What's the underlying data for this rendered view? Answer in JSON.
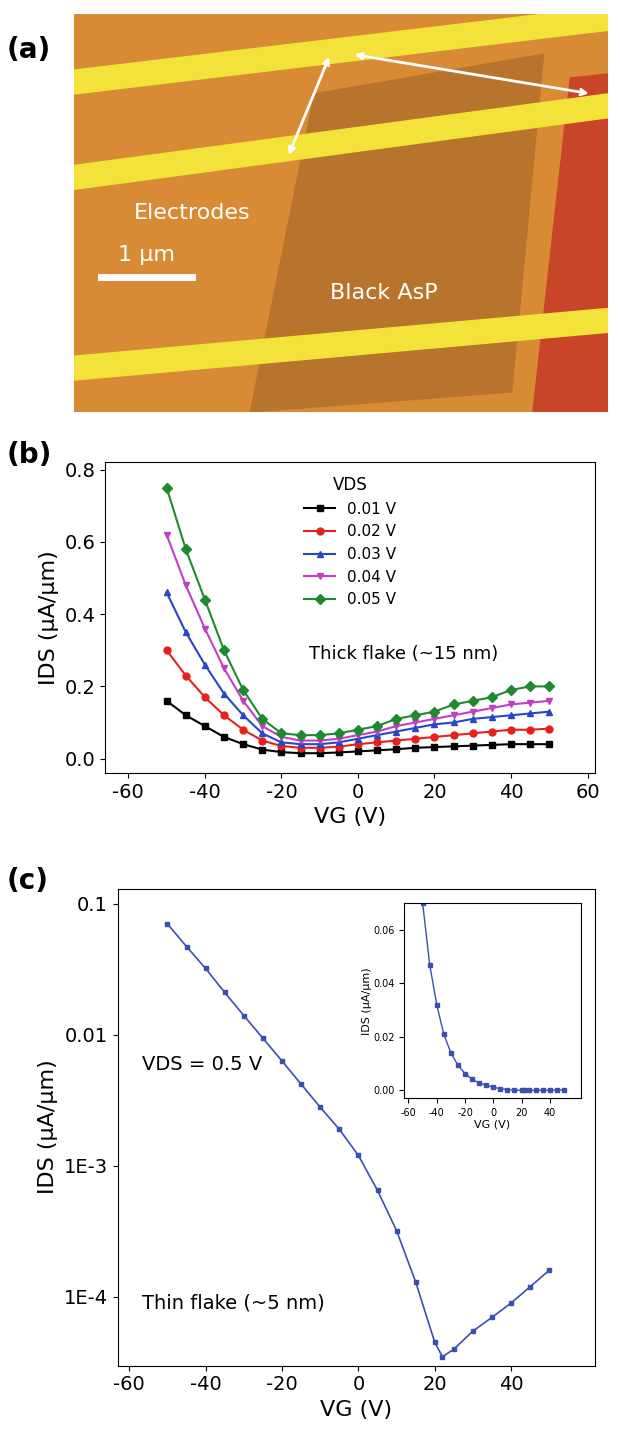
{
  "chart_data": [
    {
      "type": "image",
      "panel_label": "(a)",
      "annotations": [
        "Electrodes",
        "Black AsP",
        "1 μm"
      ]
    },
    {
      "type": "line",
      "panel_label": "(b)",
      "x_label": "VG (V)",
      "y_label": "IDS (μA/μm)",
      "legend_title": "VDS",
      "legend": "upper center",
      "annotations": [
        "Thick flake (~15 nm)"
      ],
      "x": [
        -50,
        -45,
        -40,
        -35,
        -30,
        -25,
        -20,
        -15,
        -10,
        -5,
        0,
        5,
        10,
        15,
        20,
        25,
        30,
        35,
        40,
        45,
        50
      ],
      "xlim": [
        -66,
        62
      ],
      "xticks": [
        -60,
        -40,
        -20,
        0,
        20,
        40,
        60
      ],
      "ylim": [
        -0.04,
        0.82
      ],
      "yticks": [
        0.0,
        0.2,
        0.4,
        0.6,
        0.8
      ],
      "series": [
        {
          "name": "0.01 V",
          "color": "#000000",
          "marker": "square",
          "values": [
            0.16,
            0.12,
            0.09,
            0.06,
            0.04,
            0.025,
            0.018,
            0.015,
            0.015,
            0.017,
            0.02,
            0.023,
            0.026,
            0.03,
            0.032,
            0.034,
            0.036,
            0.038,
            0.04,
            0.04,
            0.04
          ]
        },
        {
          "name": "0.02 V",
          "color": "#e8201c",
          "marker": "circle",
          "values": [
            0.3,
            0.23,
            0.17,
            0.12,
            0.08,
            0.05,
            0.035,
            0.03,
            0.03,
            0.033,
            0.04,
            0.045,
            0.05,
            0.055,
            0.06,
            0.065,
            0.07,
            0.075,
            0.08,
            0.08,
            0.083
          ]
        },
        {
          "name": "0.03 V",
          "color": "#2846c8",
          "marker": "triangle_up",
          "values": [
            0.46,
            0.35,
            0.26,
            0.18,
            0.12,
            0.07,
            0.045,
            0.04,
            0.04,
            0.045,
            0.055,
            0.065,
            0.075,
            0.085,
            0.095,
            0.1,
            0.11,
            0.115,
            0.12,
            0.125,
            0.13
          ]
        },
        {
          "name": "0.04 V",
          "color": "#c23ec2",
          "marker": "triangle_down",
          "values": [
            0.62,
            0.48,
            0.36,
            0.25,
            0.16,
            0.09,
            0.06,
            0.05,
            0.05,
            0.055,
            0.065,
            0.075,
            0.09,
            0.1,
            0.11,
            0.12,
            0.13,
            0.14,
            0.15,
            0.155,
            0.16
          ]
        },
        {
          "name": "0.05 V",
          "color": "#1e8a2e",
          "marker": "diamond",
          "values": [
            0.75,
            0.58,
            0.44,
            0.3,
            0.19,
            0.11,
            0.07,
            0.065,
            0.065,
            0.07,
            0.08,
            0.09,
            0.11,
            0.12,
            0.13,
            0.15,
            0.16,
            0.17,
            0.19,
            0.2,
            0.2
          ]
        }
      ]
    },
    {
      "type": "line",
      "panel_label": "(c)",
      "x_label": "VG (V)",
      "y_label": "IDS (μA/μm)",
      "log": "y",
      "annotations": [
        "VDS = 0.5 V",
        "Thin flake (~5 nm)"
      ],
      "color": "#3a4fb0",
      "marker": "square",
      "x": [
        -50,
        -45,
        -40,
        -35,
        -30,
        -25,
        -20,
        -15,
        -10,
        -5,
        0,
        5,
        10,
        15,
        20,
        22,
        25,
        30,
        35,
        40,
        45,
        50
      ],
      "values": [
        0.07,
        0.047,
        0.032,
        0.021,
        0.014,
        0.0094,
        0.0063,
        0.0042,
        0.0028,
        0.0019,
        0.0012,
        0.00065,
        0.00032,
        0.00013,
        4.5e-05,
        3.5e-05,
        4e-05,
        5.5e-05,
        7e-05,
        9e-05,
        0.00012,
        0.00016
      ],
      "xlim": [
        -63,
        62
      ],
      "xticks": [
        -60,
        -40,
        -20,
        0,
        20,
        40
      ],
      "ylim": [
        3e-05,
        0.13
      ],
      "yticks": [
        {
          "value": 0.0001,
          "label": "1E-4"
        },
        {
          "value": 0.001,
          "label": "1E-3"
        },
        0.01,
        0.1
      ],
      "inset": {
        "x_label": "VG (V)",
        "y_label": "IDS (μA/μm)",
        "xlim": [
          -63,
          62
        ],
        "xticks": [
          -60,
          -40,
          -20,
          0,
          20,
          40
        ],
        "ylim": [
          -0.003,
          0.07
        ],
        "yticks": [
          {
            "value": 0.0,
            "label": "0.00"
          },
          {
            "value": 0.02,
            "label": "0.02"
          },
          {
            "value": 0.04,
            "label": "0.04"
          },
          {
            "value": 0.06,
            "label": "0.06"
          }
        ]
      }
    }
  ]
}
